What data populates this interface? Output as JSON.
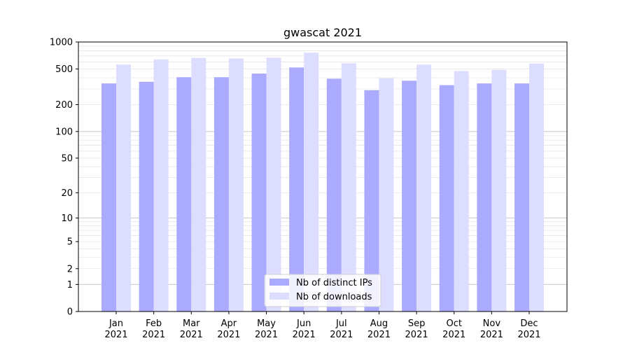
{
  "chart_data": {
    "type": "bar",
    "title": "gwascat 2021",
    "xlabel": "",
    "ylabel": "",
    "yscale": "log(1+y)",
    "ylim": [
      0,
      1000
    ],
    "yticks": [
      0,
      1,
      2,
      5,
      10,
      20,
      50,
      100,
      200,
      500,
      1000
    ],
    "grid": true,
    "legend_position": "bottom-center",
    "categories": [
      [
        "Jan",
        "2021"
      ],
      [
        "Feb",
        "2021"
      ],
      [
        "Mar",
        "2021"
      ],
      [
        "Apr",
        "2021"
      ],
      [
        "May",
        "2021"
      ],
      [
        "Jun",
        "2021"
      ],
      [
        "Jul",
        "2021"
      ],
      [
        "Aug",
        "2021"
      ],
      [
        "Sep",
        "2021"
      ],
      [
        "Oct",
        "2021"
      ],
      [
        "Nov",
        "2021"
      ],
      [
        "Dec",
        "2021"
      ]
    ],
    "series": [
      {
        "name": "Nb of distinct IPs",
        "color": "#aaaaff",
        "values": [
          345,
          360,
          405,
          405,
          445,
          520,
          390,
          290,
          370,
          330,
          345,
          345
        ]
      },
      {
        "name": "Nb of downloads",
        "color": "#ddddff",
        "values": [
          560,
          640,
          665,
          655,
          670,
          760,
          580,
          395,
          560,
          475,
          490,
          575
        ]
      }
    ]
  }
}
